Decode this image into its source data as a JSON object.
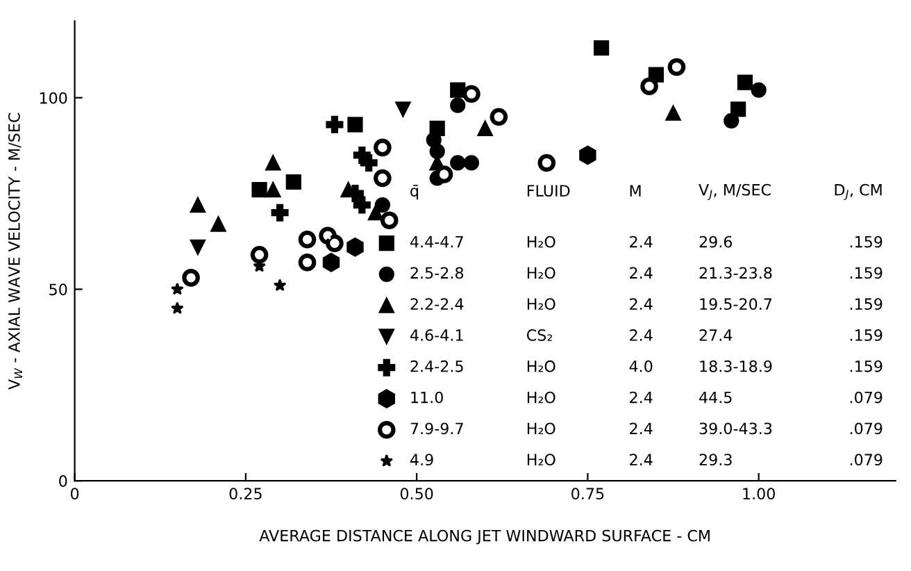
{
  "chart_data": {
    "type": "scatter",
    "xlabel": "AVERAGE DISTANCE ALONG JET WINDWARD SURFACE - CM",
    "ylabel": "V$_{W}$ - AXIAL WAVE VELOCITY - M/SEC",
    "xlim": [
      0,
      1.2
    ],
    "ylim": [
      0,
      120
    ],
    "xticks": [
      0,
      0.25,
      {
        "value": 0.5,
        "label": "0.50"
      },
      0.75,
      {
        "value": 1.0,
        "label": "1.00"
      }
    ],
    "yticks": [
      0,
      50,
      100
    ],
    "grid": false,
    "legend": "bottom",
    "series": [
      {
        "name": "4.4-4.7",
        "color": "#000000",
        "x": [
          0.27,
          0.32,
          0.41,
          0.53,
          0.56,
          0.77,
          0.85,
          0.97,
          0.98
        ],
        "values": [
          76,
          78,
          93,
          92,
          102,
          113,
          106,
          97,
          104
        ]
      },
      {
        "name": "2.5-2.8",
        "color": "#000000",
        "x": [
          0.56,
          0.525,
          0.53,
          0.53,
          0.56,
          0.58,
          1.0,
          0.96,
          0.45
        ],
        "values": [
          98,
          89,
          86,
          79,
          83,
          83,
          102,
          94,
          72
        ]
      },
      {
        "name": "2.2-2.4",
        "color": "#000000",
        "x": [
          0.6,
          0.53,
          0.29,
          0.29,
          0.18,
          0.21,
          0.4,
          0.44,
          0.875
        ],
        "values": [
          92,
          83,
          83,
          76,
          72,
          67,
          76,
          70,
          96
        ]
      },
      {
        "name": "4.6-4.1",
        "color": "#000000",
        "x": [
          0.48,
          0.18
        ],
        "values": [
          97,
          61
        ]
      },
      {
        "name": "2.4-2.5",
        "color": "#000000",
        "x": [
          0.38,
          0.42,
          0.43,
          0.3,
          0.41,
          0.42
        ],
        "values": [
          93,
          85,
          83,
          70,
          75,
          72
        ]
      },
      {
        "name": "11.0",
        "color": "#000000",
        "x": [
          0.41,
          0.375,
          0.75
        ],
        "values": [
          61,
          57,
          85
        ]
      },
      {
        "name": "7.9-9.7",
        "color": "#000000",
        "x": [
          0.58,
          0.45,
          0.54,
          0.45,
          0.46,
          0.34,
          0.37,
          0.38,
          0.27,
          0.34,
          0.17,
          0.84,
          0.88,
          0.62,
          0.69
        ],
        "values": [
          101,
          87,
          80,
          79,
          68,
          63,
          64,
          62,
          59,
          57,
          53,
          103,
          108,
          95,
          83
        ]
      },
      {
        "name": "4.9",
        "color": "#000000",
        "x": [
          0.15,
          0.15,
          0.27,
          0.3
        ],
        "values": [
          50,
          45,
          56,
          51
        ]
      }
    ],
    "annotations": [
      "q̄",
      "FLUID",
      "M",
      "V$_{J}$, M/SEC",
      "D$_{J}$, CM",
      "H₂O",
      "2.4",
      "29.6",
      ".159",
      "H₂O",
      "2.4",
      "21.3-23.8",
      ".159",
      "H₂O",
      "2.4",
      "19.5-20.7",
      ".159",
      "CS₂",
      "2.4",
      "27.4",
      ".159",
      "H₂O",
      "4.0",
      "18.3-18.9",
      ".159",
      "H₂O",
      "2.4",
      "44.5",
      ".079",
      "H₂O",
      "2.4",
      "39.0-43.3",
      ".079",
      "H₂O",
      "2.4",
      "29.3",
      ".079"
    ]
  }
}
